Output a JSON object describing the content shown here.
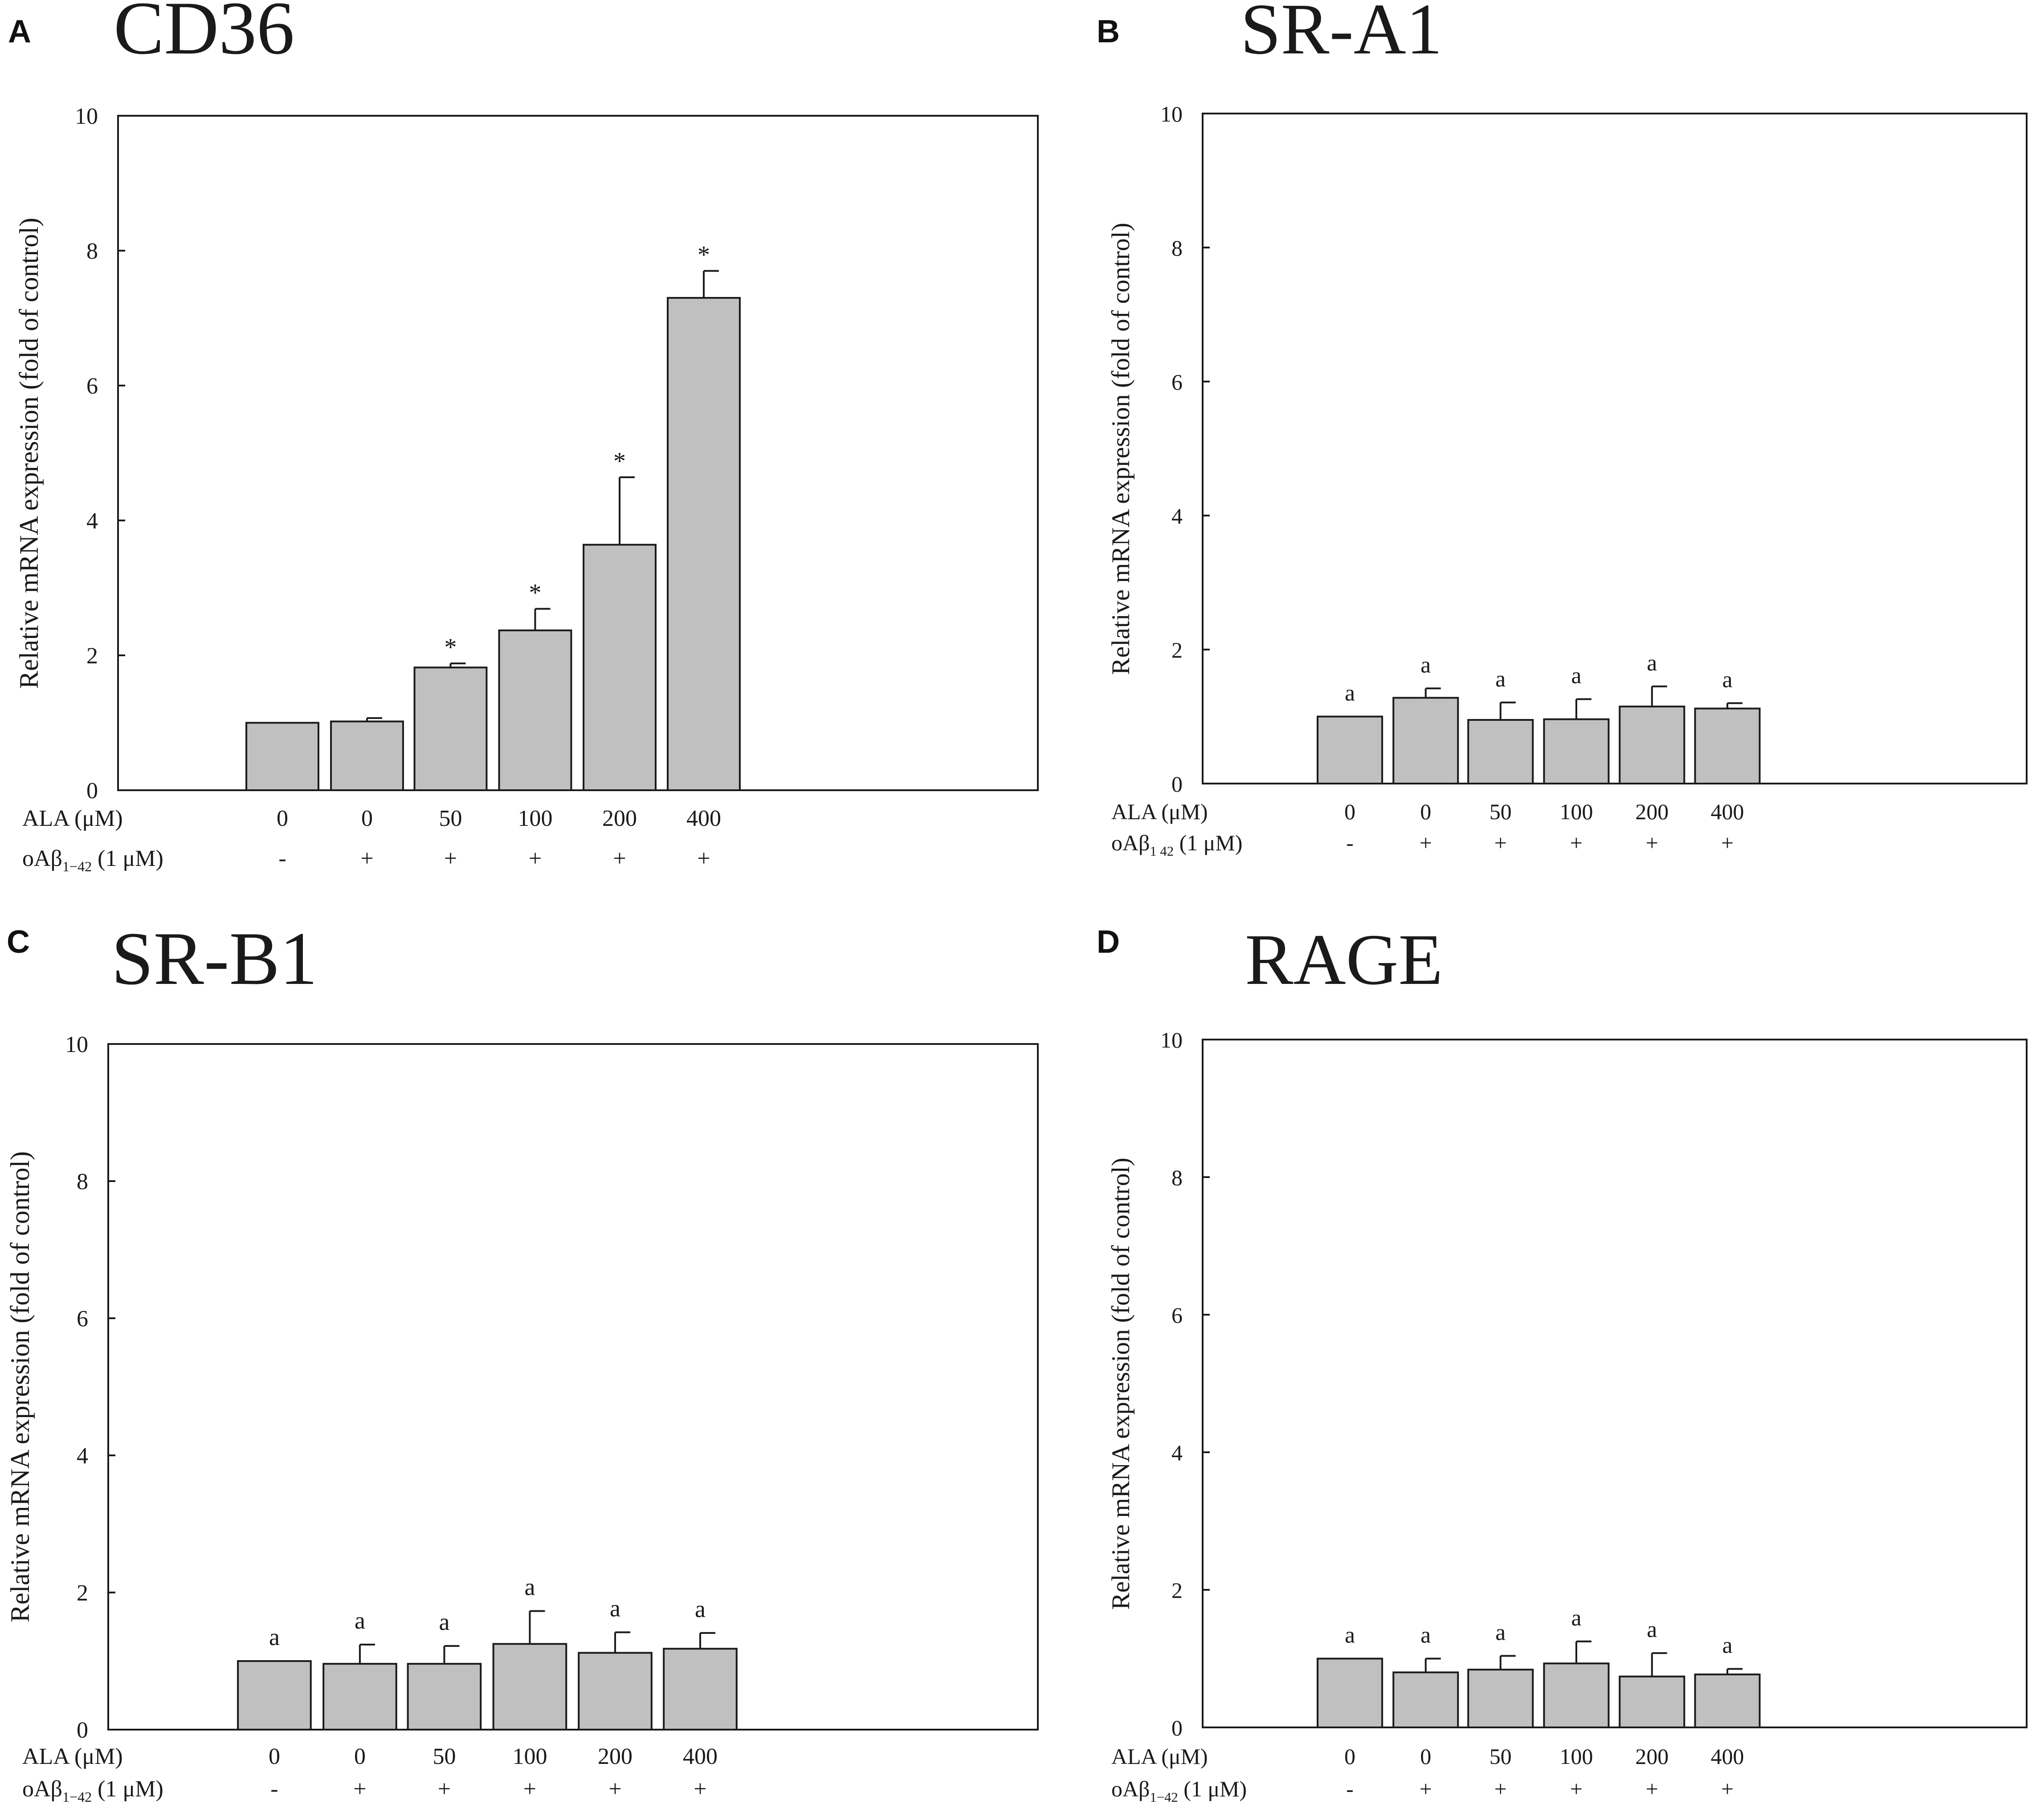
{
  "colors": {
    "bar_fill": "#c0c0c0",
    "bar_stroke": "#1a1a1a",
    "axis": "#1a1a1a",
    "background": "#ffffff"
  },
  "chart_data": [
    {
      "type": "bar",
      "panel": "A",
      "title": "CD36",
      "ylabel": "Relative mRNA expression (fold of control)",
      "xlabel": "",
      "ylim": [
        0,
        10
      ],
      "yticks": [
        0,
        2,
        4,
        6,
        8,
        10
      ],
      "categories": [
        "0",
        "0",
        "50",
        "100",
        "200",
        "400"
      ],
      "values": [
        1.0,
        1.02,
        1.82,
        2.37,
        3.64,
        7.3
      ],
      "errors": [
        0.0,
        0.05,
        0.06,
        0.32,
        1.0,
        0.4
      ],
      "annotations": [
        "",
        "",
        "*",
        "*",
        "*",
        "*"
      ],
      "row_labels": {
        "ala": "ALA (μM)",
        "oab_main": "oAβ",
        "oab_sub": "1−42",
        "oab_suffix": " (1 μM)"
      },
      "ala_values": [
        "0",
        "0",
        "50",
        "100",
        "200",
        "400"
      ],
      "oab_values": [
        "-",
        "+",
        "+",
        "+",
        "+",
        "+"
      ]
    },
    {
      "type": "bar",
      "panel": "B",
      "title": "SR-A1",
      "ylabel": "Relative mRNA expression (fold of control)",
      "xlabel": "",
      "ylim": [
        0,
        10
      ],
      "yticks": [
        0,
        2,
        4,
        6,
        8,
        10
      ],
      "categories": [
        "0",
        "0",
        "50",
        "100",
        "200",
        "400"
      ],
      "values": [
        1.0,
        1.28,
        0.95,
        0.96,
        1.15,
        1.12
      ],
      "errors": [
        0.0,
        0.14,
        0.26,
        0.3,
        0.3,
        0.08
      ],
      "annotations": [
        "a",
        "a",
        "a",
        "a",
        "a",
        "a"
      ],
      "row_labels": {
        "ala": "ALA (μM)",
        "oab_main": "oAβ",
        "oab_sub": "1 42",
        "oab_suffix": " (1 μM)"
      },
      "ala_values": [
        "0",
        "0",
        "50",
        "100",
        "200",
        "400"
      ],
      "oab_values": [
        "-",
        "+",
        "+",
        "+",
        "+",
        "+"
      ]
    },
    {
      "type": "bar",
      "panel": "C",
      "title": "SR-B1",
      "ylabel": "Relative mRNA expression (fold of control)",
      "xlabel": "",
      "ylim": [
        0,
        10
      ],
      "yticks": [
        0,
        2,
        4,
        6,
        8,
        10
      ],
      "categories": [
        "0",
        "0",
        "50",
        "100",
        "200",
        "400"
      ],
      "values": [
        1.0,
        0.96,
        0.96,
        1.25,
        1.12,
        1.18
      ],
      "errors": [
        0.0,
        0.28,
        0.26,
        0.48,
        0.3,
        0.23
      ],
      "annotations": [
        "a",
        "a",
        "a",
        "a",
        "a",
        "a"
      ],
      "row_labels": {
        "ala": "ALA (μM)",
        "oab_main": "oAβ",
        "oab_sub": "1−42",
        "oab_suffix": " (1 μM)"
      },
      "ala_values": [
        "0",
        "0",
        "50",
        "100",
        "200",
        "400"
      ],
      "oab_values": [
        "-",
        "+",
        "+",
        "+",
        "+",
        "+"
      ]
    },
    {
      "type": "bar",
      "panel": "D",
      "title": "RAGE",
      "ylabel": "Relative mRNA expression (fold of control)",
      "xlabel": "",
      "ylim": [
        0,
        10
      ],
      "yticks": [
        0,
        2,
        4,
        6,
        8,
        10
      ],
      "categories": [
        "0",
        "0",
        "50",
        "100",
        "200",
        "400"
      ],
      "values": [
        1.0,
        0.8,
        0.84,
        0.93,
        0.74,
        0.77
      ],
      "errors": [
        0.0,
        0.2,
        0.2,
        0.32,
        0.34,
        0.08
      ],
      "annotations": [
        "a",
        "a",
        "a",
        "a",
        "a",
        "a"
      ],
      "row_labels": {
        "ala": "ALA (μM)",
        "oab_main": "oAβ",
        "oab_sub": "1−42",
        "oab_suffix": " (1 μM)"
      },
      "ala_values": [
        "0",
        "0",
        "50",
        "100",
        "200",
        "400"
      ],
      "oab_values": [
        "-",
        "+",
        "+",
        "+",
        "+",
        "+"
      ]
    }
  ]
}
